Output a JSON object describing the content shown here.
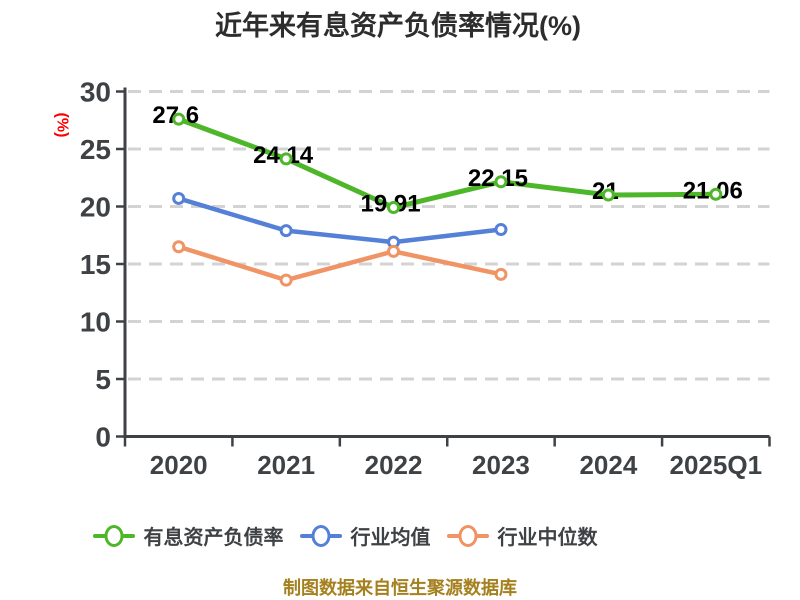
{
  "title": {
    "text": "近年来有息资产负债率情况(%)"
  },
  "footer": {
    "text": "制图数据来自恒生聚源数据库",
    "color": "#a5801e"
  },
  "colors": {
    "background": "#ffffff",
    "title": "#2d2d2d",
    "axis": "#3f4245",
    "grid": "#d3d3d3",
    "y_unit_red": "#ff0000",
    "point_label": "#000000",
    "series_green": "#4eb629",
    "series_blue": "#5580d8",
    "series_orange": "#f09365"
  },
  "chart_data": {
    "type": "line",
    "title": "近年来有息资产负债率情况(%)",
    "ylabel": "(%)",
    "xlabel": "",
    "categories": [
      "2020",
      "2021",
      "2022",
      "2023",
      "2024",
      "2025Q1"
    ],
    "ylim": [
      0,
      30
    ],
    "yticks": [
      0,
      5,
      10,
      15,
      20,
      25,
      30
    ],
    "grid": "horizontal-dashed",
    "legend_position": "bottom",
    "marker_style": "white-filled circle with colored ring",
    "series": [
      {
        "id": "interest-bearing-debt-ratio",
        "name": "有息资产负债率",
        "color": "#4eb629",
        "line_width": 5,
        "values": [
          27.6,
          24.14,
          19.91,
          22.15,
          21,
          21.06
        ],
        "point_labels": [
          "27.6",
          "24.14",
          "19.91",
          "22.15",
          "21",
          "21.06"
        ]
      },
      {
        "id": "industry-average",
        "name": "行业均值",
        "color": "#5580d8",
        "line_width": 4.5,
        "values": [
          20.7,
          17.9,
          16.9,
          18,
          null,
          null
        ],
        "point_labels": null
      },
      {
        "id": "industry-median",
        "name": "行业中位数",
        "color": "#f09365",
        "line_width": 4.5,
        "values": [
          16.5,
          13.6,
          16.1,
          14.1,
          null,
          null
        ],
        "point_labels": null
      }
    ]
  },
  "legend": {
    "items": [
      {
        "id": "interest-bearing-debt-ratio",
        "label": "有息资产负债率",
        "color": "#4eb629"
      },
      {
        "id": "industry-average",
        "label": "行业均值",
        "color": "#5580d8"
      },
      {
        "id": "industry-median",
        "label": "行业中位数",
        "color": "#f09365"
      }
    ]
  }
}
